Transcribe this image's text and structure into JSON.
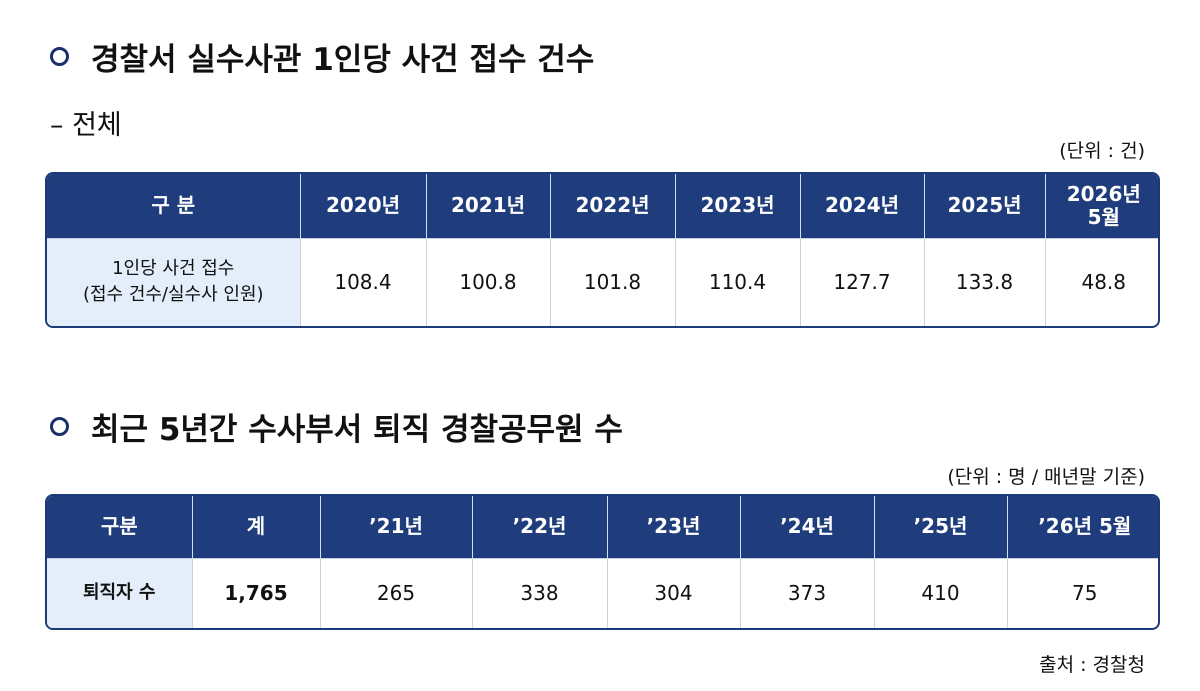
{
  "sections": [
    {
      "title": "경찰서 실수사관 1인당 사건 접수 건수",
      "subtitle": "– 전체",
      "unit": "(단위 : 건)",
      "table": {
        "header": [
          "구 분",
          "2020년",
          "2021년",
          "2022년",
          "2023년",
          "2024년",
          "2025년",
          "2026년\n5월"
        ],
        "rows": [
          [
            "1인당 사건 접수\n(접수 건수/실수사 인원)",
            "108.4",
            "100.8",
            "101.8",
            "110.4",
            "127.7",
            "133.8",
            "48.8"
          ]
        ]
      }
    },
    {
      "title": "최근 5년간 수사부서 퇴직 경찰공무원 수",
      "unit": "(단위 : 명 / 매년말 기준)",
      "table": {
        "header": [
          "구분",
          "계",
          "’21년",
          "’22년",
          "’23년",
          "’24년",
          "’25년",
          "’26년 5월"
        ],
        "rows": [
          [
            "퇴직자 수",
            "1,765",
            "265",
            "338",
            "304",
            "373",
            "410",
            "75"
          ]
        ]
      }
    }
  ],
  "source": "출처 : 경찰청"
}
